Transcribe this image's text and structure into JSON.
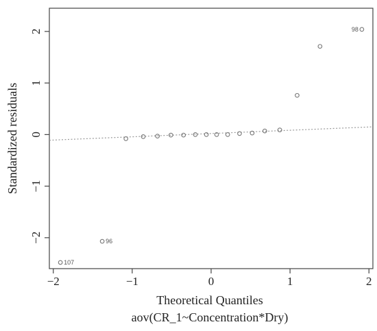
{
  "chart_data": {
    "type": "scatter",
    "title": "",
    "xlabel": "Theoretical Quantiles",
    "subtitle": "aov(CR_1~Concentration*Dry)",
    "ylabel": "Standardized residuals",
    "xlim": [
      -2.05,
      2.05
    ],
    "ylim": [
      -2.6,
      2.45
    ],
    "x_ticks": [
      -2,
      -1,
      0,
      1,
      2
    ],
    "y_ticks": [
      -2,
      -1,
      0,
      1,
      2
    ],
    "x_tick_labels": [
      "−2",
      "−1",
      "0",
      "1",
      "2"
    ],
    "y_tick_labels": [
      "−2",
      "−1",
      "0",
      "1",
      "2"
    ],
    "grid": false,
    "points": [
      {
        "x": -1.91,
        "y": -2.48,
        "label": "107"
      },
      {
        "x": -1.38,
        "y": -2.07,
        "label": "96"
      },
      {
        "x": -1.08,
        "y": -0.08,
        "label": ""
      },
      {
        "x": -0.86,
        "y": -0.04,
        "label": ""
      },
      {
        "x": -0.68,
        "y": -0.03,
        "label": ""
      },
      {
        "x": -0.51,
        "y": -0.01,
        "label": ""
      },
      {
        "x": -0.35,
        "y": -0.01,
        "label": ""
      },
      {
        "x": -0.2,
        "y": 0.0,
        "label": ""
      },
      {
        "x": -0.06,
        "y": 0.0,
        "label": ""
      },
      {
        "x": 0.07,
        "y": 0.0,
        "label": ""
      },
      {
        "x": 0.21,
        "y": 0.0,
        "label": ""
      },
      {
        "x": 0.36,
        "y": 0.02,
        "label": ""
      },
      {
        "x": 0.52,
        "y": 0.03,
        "label": ""
      },
      {
        "x": 0.68,
        "y": 0.07,
        "label": ""
      },
      {
        "x": 0.87,
        "y": 0.09,
        "label": ""
      },
      {
        "x": 1.09,
        "y": 0.76,
        "label": ""
      },
      {
        "x": 1.38,
        "y": 1.71,
        "label": ""
      },
      {
        "x": 1.91,
        "y": 2.04,
        "label": "98"
      }
    ],
    "reference_line": {
      "x": [
        -2.05,
        2.05
      ],
      "y": [
        -0.11,
        0.15
      ],
      "style": "dotted"
    },
    "colors": {
      "points": "#777777",
      "line": "#999999",
      "axis": "#444444",
      "labels": "#555555"
    }
  }
}
